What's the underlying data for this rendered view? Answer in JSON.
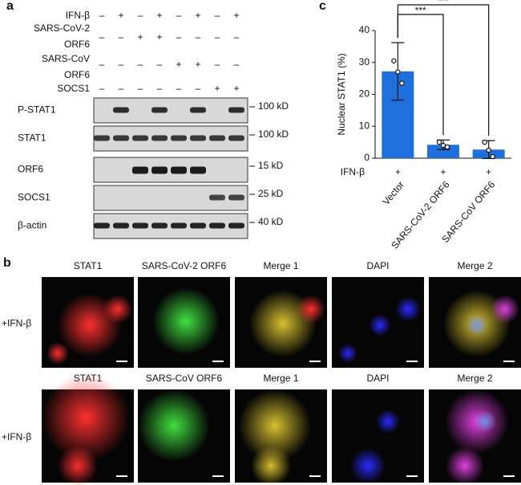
{
  "panel_a": {
    "label": "a",
    "conditions": [
      {
        "name": [
          "IFN-β"
        ],
        "signs": [
          "–",
          "+",
          "–",
          "+",
          "–",
          "+",
          "–",
          "+"
        ]
      },
      {
        "name": [
          "SARS-CoV-2",
          "ORF6"
        ],
        "signs": [
          "–",
          "–",
          "+",
          "+",
          "–",
          "–",
          "–",
          "–"
        ]
      },
      {
        "name": [
          "SARS-CoV",
          "ORF6"
        ],
        "signs": [
          "–",
          "–",
          "–",
          "–",
          "+",
          "+",
          "–",
          "–"
        ]
      },
      {
        "name": [
          "SOCS1"
        ],
        "signs": [
          "–",
          "–",
          "–",
          "–",
          "–",
          "–",
          "+",
          "+"
        ]
      }
    ],
    "blots": [
      {
        "name": "P-STAT1",
        "size": "100 kD"
      },
      {
        "name": "STAT1",
        "size": "100 kD"
      },
      {
        "name": "ORF6",
        "size": "15 kD"
      },
      {
        "name": "SOCS1",
        "size": "25 kD"
      },
      {
        "name": "β-actin",
        "size": "40 kD"
      }
    ]
  },
  "chart_data": {
    "type": "bar",
    "panel_label": "c",
    "y_label": "Nuclear STAT1 (%)",
    "row_label": "IFN-β",
    "row_signs": [
      "+",
      "+",
      "+"
    ],
    "categories": [
      "Vector",
      "SARS-CoV-2 ORF6",
      "SARS-CoV ORF6"
    ],
    "values": [
      27.2,
      4.2,
      2.7
    ],
    "errors": [
      9,
      1.5,
      2.8
    ],
    "points": [
      [
        30.5,
        27,
        23.5
      ],
      [
        5,
        4,
        3.5
      ],
      [
        5,
        2.5,
        0.5
      ]
    ],
    "color": "#1f6fdc",
    "ylim": [
      0,
      40
    ],
    "yticks": [
      0,
      10,
      20,
      30,
      40
    ],
    "annotations": [
      "***",
      "***"
    ]
  },
  "panel_b": {
    "label": "b",
    "rows": [
      {
        "label": "+IFN-β",
        "columns": [
          "STAT1",
          "SARS-CoV-2 ORF6",
          "Merge 1",
          "DAPI",
          "Merge 2"
        ]
      },
      {
        "label": "+IFN-β",
        "columns": [
          "STAT1",
          "SARS-CoV ORF6",
          "Merge 1",
          "DAPI",
          "Merge 2"
        ]
      }
    ]
  }
}
